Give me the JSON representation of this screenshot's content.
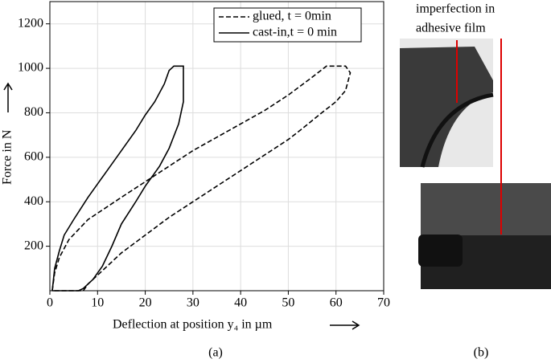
{
  "chart_data": {
    "type": "line",
    "xlabel": "Deflection at position y₄ in µm",
    "ylabel": "Force in N",
    "xlim": [
      0,
      70
    ],
    "xticks": [
      0,
      10,
      20,
      30,
      40,
      50,
      60,
      70
    ],
    "ylim": [
      0,
      1300
    ],
    "yticks": [
      200,
      400,
      600,
      800,
      1000,
      1200
    ],
    "grid": true,
    "legend": "upper right",
    "panel_labels": [
      "(a)",
      "(b)"
    ],
    "annotation": [
      "imperfection in",
      "adhesive film"
    ],
    "series": [
      {
        "name": "glued, t = 0min",
        "color": "#000000",
        "dash": "dashed",
        "x": [
          0.5,
          1,
          2,
          4,
          8,
          15,
          20,
          25,
          30,
          35,
          40,
          45,
          50,
          55,
          58,
          62,
          63,
          62,
          60,
          57,
          53,
          50,
          45,
          40,
          35,
          30,
          25,
          20,
          15,
          12,
          10,
          8,
          7,
          0.5
        ],
        "values": [
          0,
          80,
          150,
          230,
          320,
          420,
          490,
          560,
          630,
          690,
          750,
          810,
          880,
          960,
          1010,
          1010,
          980,
          900,
          850,
          800,
          730,
          680,
          610,
          540,
          470,
          400,
          330,
          250,
          170,
          110,
          70,
          30,
          0,
          0
        ]
      },
      {
        "name": "cast-in,t = 0 min",
        "color": "#000000",
        "dash": "solid",
        "x": [
          0.5,
          1,
          2,
          3,
          5,
          8,
          10,
          13,
          15,
          18,
          20,
          22,
          24,
          25,
          26,
          28,
          28,
          28,
          27,
          25,
          23,
          20,
          18,
          15,
          13,
          11,
          9,
          7,
          6,
          0.5
        ],
        "values": [
          0,
          100,
          180,
          250,
          320,
          420,
          480,
          570,
          630,
          720,
          790,
          850,
          930,
          990,
          1010,
          1010,
          950,
          850,
          750,
          640,
          560,
          470,
          400,
          300,
          200,
          110,
          50,
          10,
          0,
          0
        ]
      }
    ]
  }
}
